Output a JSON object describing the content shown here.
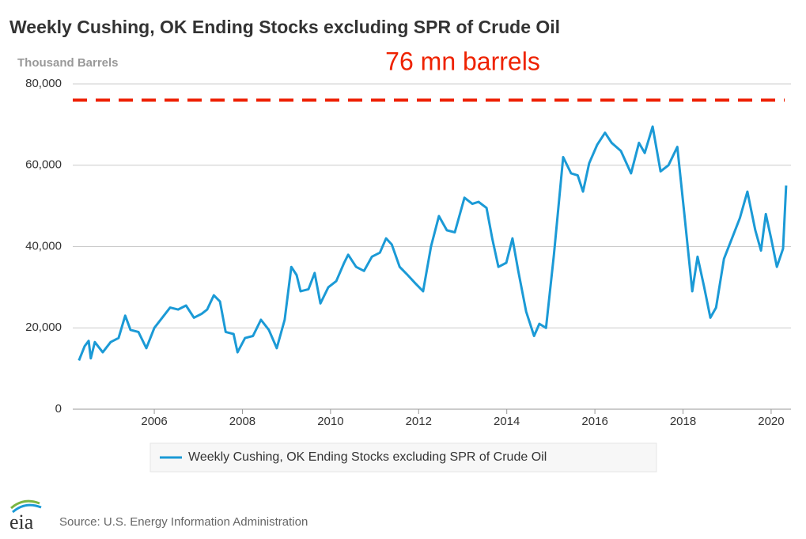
{
  "chart_data": {
    "type": "line",
    "title": "Weekly Cushing, OK Ending Stocks excluding SPR of Crude Oil",
    "y_label": "Thousand Barrels",
    "annotation": "76 mn barrels",
    "reference_line": {
      "value": 76000,
      "color": "#ee2200"
    },
    "x": [
      2004.29,
      2004.42,
      2004.51,
      2004.56,
      2004.65,
      2004.83,
      2005.01,
      2005.19,
      2005.34,
      2005.46,
      2005.64,
      2005.82,
      2006.0,
      2006.18,
      2006.36,
      2006.54,
      2006.72,
      2006.9,
      2007.08,
      2007.2,
      2007.35,
      2007.49,
      2007.62,
      2007.8,
      2007.89,
      2008.06,
      2008.24,
      2008.42,
      2008.6,
      2008.78,
      2008.96,
      2009.11,
      2009.23,
      2009.32,
      2009.5,
      2009.64,
      2009.77,
      2009.95,
      2010.13,
      2010.31,
      2010.4,
      2010.58,
      2010.76,
      2010.94,
      2011.12,
      2011.26,
      2011.39,
      2011.57,
      2011.75,
      2011.92,
      2012.1,
      2012.28,
      2012.46,
      2012.64,
      2012.82,
      2013.04,
      2013.22,
      2013.36,
      2013.54,
      2013.67,
      2013.81,
      2013.99,
      2014.13,
      2014.26,
      2014.44,
      2014.62,
      2014.74,
      2014.89,
      2015.07,
      2015.28,
      2015.46,
      2015.61,
      2015.73,
      2015.87,
      2016.05,
      2016.23,
      2016.38,
      2016.59,
      2016.82,
      2017.0,
      2017.13,
      2017.31,
      2017.49,
      2017.67,
      2017.87,
      2018.03,
      2018.21,
      2018.33,
      2018.48,
      2018.62,
      2018.75,
      2018.93,
      2019.11,
      2019.29,
      2019.46,
      2019.64,
      2019.77,
      2019.88,
      2020.0,
      2020.13,
      2020.27,
      2020.34
    ],
    "series": [
      {
        "name": "Weekly Cushing, OK Ending Stocks excluding SPR of Crude Oil",
        "color": "#1b9ad6",
        "values": [
          12000,
          15500,
          16800,
          12500,
          16500,
          14000,
          16500,
          17500,
          23000,
          19500,
          19000,
          15000,
          20000,
          22500,
          25000,
          24500,
          25500,
          22500,
          23500,
          24500,
          28000,
          26500,
          19000,
          18500,
          14000,
          17500,
          18000,
          22000,
          19500,
          15000,
          22000,
          35000,
          33000,
          29000,
          29500,
          33500,
          26000,
          30000,
          31500,
          36000,
          38000,
          35000,
          34000,
          37500,
          38500,
          42000,
          40500,
          35000,
          33000,
          31000,
          29000,
          40000,
          47500,
          44000,
          43500,
          52000,
          50500,
          51000,
          49500,
          42000,
          35000,
          36000,
          42000,
          34000,
          24000,
          18000,
          21000,
          20000,
          38000,
          62000,
          58000,
          57500,
          53500,
          60500,
          65000,
          68000,
          65500,
          63500,
          58000,
          65500,
          63000,
          69500,
          58500,
          60000,
          64500,
          48000,
          29000,
          37500,
          30000,
          22500,
          25000,
          37000,
          42000,
          47000,
          53500,
          44000,
          39000,
          48000,
          42000,
          35000,
          39500,
          55000
        ]
      }
    ],
    "xlim": [
      2004.15,
      2020.45
    ],
    "ylim": [
      0,
      80000
    ],
    "xticks": [
      2006,
      2008,
      2010,
      2012,
      2014,
      2016,
      2018,
      2020
    ],
    "yticks": [
      0,
      {
        "value": 20000,
        "label": "20,000"
      },
      {
        "value": 40000,
        "label": "40,000"
      },
      {
        "value": 60000,
        "label": "60,000"
      },
      {
        "value": 80000,
        "label": "80,000"
      }
    ],
    "grid": true,
    "legend": "bottom",
    "source": "Source: U.S. Energy Information Administration",
    "logo": "eia"
  }
}
